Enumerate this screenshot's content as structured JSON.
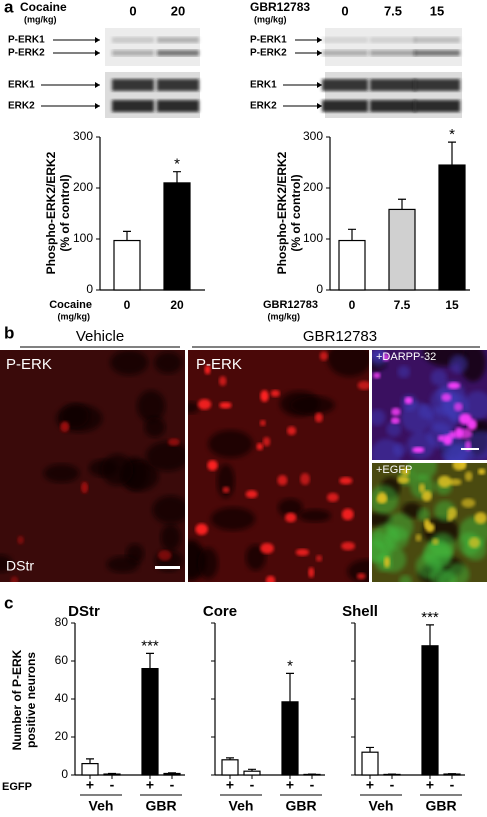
{
  "panels": [
    "a",
    "b",
    "c"
  ],
  "blots": [
    {
      "treatment": "Cocaine",
      "unit": "(mg/kg)",
      "doses": [
        "0",
        "20"
      ],
      "bands": [
        "P-ERK1",
        "P-ERK2",
        "ERK1",
        "ERK2"
      ]
    },
    {
      "treatment": "GBR12783",
      "unit": "(mg/kg)",
      "doses": [
        "0",
        "7.5",
        "15"
      ],
      "bands": [
        "P-ERK1",
        "P-ERK2",
        "ERK1",
        "ERK2"
      ]
    }
  ],
  "images": {
    "groups": [
      "Vehicle",
      "GBR12783"
    ],
    "labels": [
      "P-ERK",
      "P-ERK",
      "+DARPP-32",
      "+EGFP",
      "DStr"
    ]
  },
  "chart_data": [
    {
      "type": "bar",
      "y_label": [
        "Phospho-ERK2/ERK2",
        "(% of control)"
      ],
      "x_label": [
        "Cocaine",
        "(mg/kg)"
      ],
      "categories": [
        "0",
        "20"
      ],
      "values": [
        97,
        210
      ],
      "errors": [
        18,
        22
      ],
      "colors": [
        "#ffffff",
        "#000000"
      ],
      "significance": [
        null,
        "*"
      ],
      "ylim": [
        0,
        300
      ],
      "yticks": [
        0,
        100,
        200,
        300
      ]
    },
    {
      "type": "bar",
      "y_label": [
        "Phospho-ERK2/ERK2",
        "(% of control)"
      ],
      "x_label": [
        "GBR12783",
        "(mg/kg)"
      ],
      "categories": [
        "0",
        "7.5",
        "15"
      ],
      "values": [
        97,
        158,
        245
      ],
      "errors": [
        22,
        20,
        45
      ],
      "colors": [
        "#ffffff",
        "#d0d0d0",
        "#000000"
      ],
      "significance": [
        null,
        null,
        "*"
      ],
      "ylim": [
        0,
        300
      ],
      "yticks": [
        0,
        100,
        200,
        300
      ]
    },
    {
      "type": "bar",
      "title": "DStr",
      "y_label": [
        "Number of P-ERK",
        "positive neurons"
      ],
      "x_row_label": "EGFP",
      "categories": [
        "+",
        "-",
        "+",
        "-"
      ],
      "groups": [
        "Veh",
        "GBR"
      ],
      "values": [
        6,
        0.5,
        56,
        0.8
      ],
      "errors": [
        2.5,
        0.3,
        8,
        0.3
      ],
      "colors": [
        "#ffffff",
        "#000000",
        "#000000",
        "#000000"
      ],
      "significance": [
        null,
        null,
        "***",
        null
      ],
      "ylim": [
        0,
        80
      ],
      "yticks": [
        0,
        20,
        40,
        60,
        80
      ]
    },
    {
      "type": "bar",
      "title": "Core",
      "categories": [
        "+",
        "-",
        "+",
        "-"
      ],
      "groups": [
        "Veh",
        "GBR"
      ],
      "values": [
        8,
        2,
        38.5,
        0.3
      ],
      "errors": [
        1,
        1,
        15,
        0.2
      ],
      "colors": [
        "#ffffff",
        "#ffffff",
        "#000000",
        "#000000"
      ],
      "significance": [
        null,
        null,
        "*",
        null
      ],
      "ylim": [
        0,
        80
      ],
      "yticks": [
        0,
        20,
        40,
        60,
        80
      ]
    },
    {
      "type": "bar",
      "title": "Shell",
      "categories": [
        "+",
        "-",
        "+",
        "-"
      ],
      "groups": [
        "Veh",
        "GBR"
      ],
      "values": [
        12,
        0.3,
        68,
        0.5
      ],
      "errors": [
        2.5,
        0.2,
        11,
        0.2
      ],
      "colors": [
        "#ffffff",
        "#ffffff",
        "#000000",
        "#000000"
      ],
      "significance": [
        null,
        null,
        "***",
        null
      ],
      "ylim": [
        0,
        80
      ],
      "yticks": [
        0,
        20,
        40,
        60,
        80
      ]
    }
  ]
}
